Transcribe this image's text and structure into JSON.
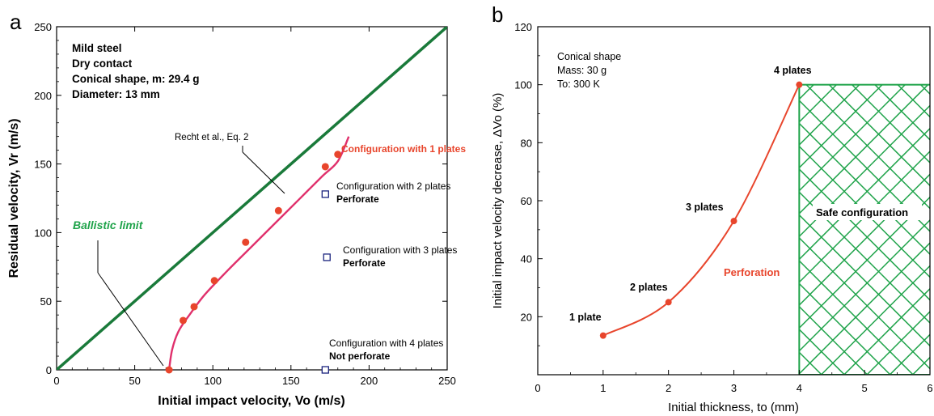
{
  "chart_data": [
    {
      "panel_label": "a",
      "type": "scatter",
      "xlabel": "Initial impact velocity, Vo (m/s)",
      "ylabel": "Residual velocity, Vr (m/s)",
      "xlim": [
        0,
        250
      ],
      "ylim": [
        0,
        250
      ],
      "xticks": [
        "0",
        "50",
        "100",
        "150",
        "200",
        "250"
      ],
      "yticks": [
        "0",
        "50",
        "100",
        "150",
        "200",
        "250"
      ],
      "info_box": [
        "Mild steel",
        "Dry contact",
        "Conical shape, m: 29.4 g",
        "Diameter: 13 mm"
      ],
      "ballistic_limit_label": "Ballistic limit",
      "model_label": "Recht et al., Eq. 2",
      "diagonal_line": {
        "x": [
          0,
          250
        ],
        "y": [
          0,
          250
        ],
        "color": "#1a7a3a"
      },
      "model_curve": {
        "color": "#e0306c",
        "points": [
          [
            72,
            0
          ],
          [
            74,
            15
          ],
          [
            78,
            28
          ],
          [
            85,
            40
          ],
          [
            95,
            55
          ],
          [
            110,
            73
          ],
          [
            125,
            90
          ],
          [
            140,
            107
          ],
          [
            155,
            124
          ],
          [
            170,
            141
          ],
          [
            180,
            152
          ],
          [
            187,
            170
          ]
        ]
      },
      "series": [
        {
          "name": "Configuration with 1 plates",
          "marker": "filled-circle",
          "color": "#e8452c",
          "points": [
            [
              72,
              0
            ],
            [
              81,
              36
            ],
            [
              88,
              46
            ],
            [
              101,
              65
            ],
            [
              121,
              93
            ],
            [
              142,
              116
            ],
            [
              172,
              148
            ],
            [
              180,
              157
            ]
          ]
        },
        {
          "name": "Configuration with 2 plates",
          "status": "Perforate",
          "marker": "open-square",
          "color": "#1a237e",
          "points": [
            [
              172,
              128
            ]
          ]
        },
        {
          "name": "Configuration with 3 plates",
          "status": "Perforate",
          "marker": "open-square",
          "color": "#1a237e",
          "points": [
            [
              173,
              82
            ]
          ]
        },
        {
          "name": "Configuration with 4 plates",
          "status": "Not perforate",
          "marker": "open-square",
          "color": "#1a237e",
          "points": [
            [
              172,
              0
            ]
          ]
        }
      ]
    },
    {
      "panel_label": "b",
      "type": "line",
      "xlabel": "Initial thickness, to (mm)",
      "ylabel": "Initial impact velocity decrease, ΔVo (%)",
      "xlim": [
        0,
        6
      ],
      "ylim": [
        0,
        120
      ],
      "xticks": [
        "0",
        "1",
        "2",
        "3",
        "4",
        "5",
        "6"
      ],
      "yticks": [
        "20",
        "40",
        "60",
        "80",
        "100",
        "120"
      ],
      "info_box": [
        "Conical shape",
        "Mass: 30 g",
        "To: 300 K"
      ],
      "line_color": "#e8452c",
      "points": [
        {
          "x": 1,
          "y": 13.5,
          "label": "1 plate"
        },
        {
          "x": 2,
          "y": 25,
          "label": "2 plates"
        },
        {
          "x": 3,
          "y": 53,
          "label": "3 plates"
        },
        {
          "x": 4,
          "y": 100,
          "label": "4 plates"
        }
      ],
      "perforation_label": "Perforation",
      "safe_region": {
        "x": [
          4,
          6
        ],
        "y": [
          0,
          100
        ],
        "label": "Safe configuration",
        "color": "#1fa34a"
      }
    }
  ]
}
